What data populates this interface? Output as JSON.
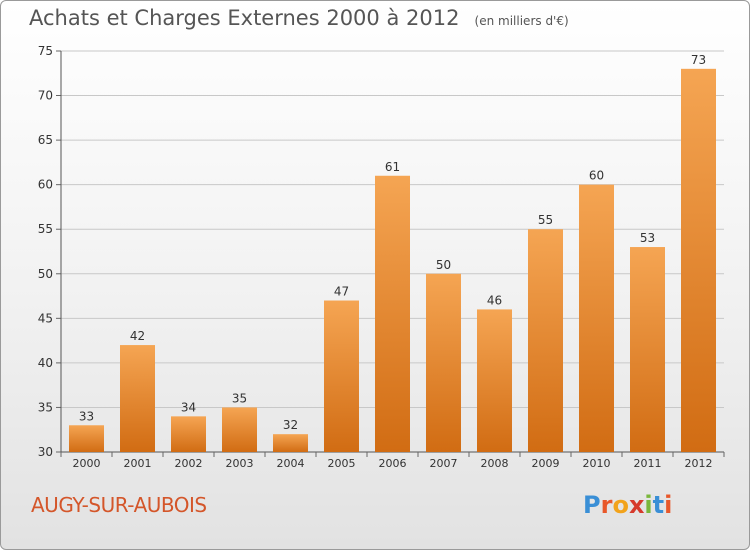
{
  "header": {
    "title": "Achats et Charges Externes 2000 à 2012",
    "subtitle": "(en milliers d'€)"
  },
  "city": "AUGY-SUR-AUBOIS",
  "logo": {
    "text": "Proxiti",
    "letter_colors": [
      "#3a8fd6",
      "#e8582a",
      "#f2a31b",
      "#d63a2c",
      "#7ab73c",
      "#3a8fd6",
      "#e8582a"
    ]
  },
  "colors": {
    "bar_top": "#f5a553",
    "bar_bottom": "#d16c13",
    "grid": "#c8c8c8",
    "axis_text": "#333333"
  },
  "chart_data": {
    "type": "bar",
    "title": "Achats et Charges Externes 2000 à 2012",
    "subtitle": "(en milliers d'€)",
    "categories": [
      "2000",
      "2001",
      "2002",
      "2003",
      "2004",
      "2005",
      "2006",
      "2007",
      "2008",
      "2009",
      "2010",
      "2011",
      "2012"
    ],
    "values": [
      33,
      42,
      34,
      35,
      32,
      47,
      61,
      50,
      46,
      55,
      60,
      53,
      73
    ],
    "ylim": [
      30,
      75
    ],
    "yticks": [
      30,
      35,
      40,
      45,
      50,
      55,
      60,
      65,
      70,
      75
    ],
    "grid": true,
    "data_labels": true
  }
}
